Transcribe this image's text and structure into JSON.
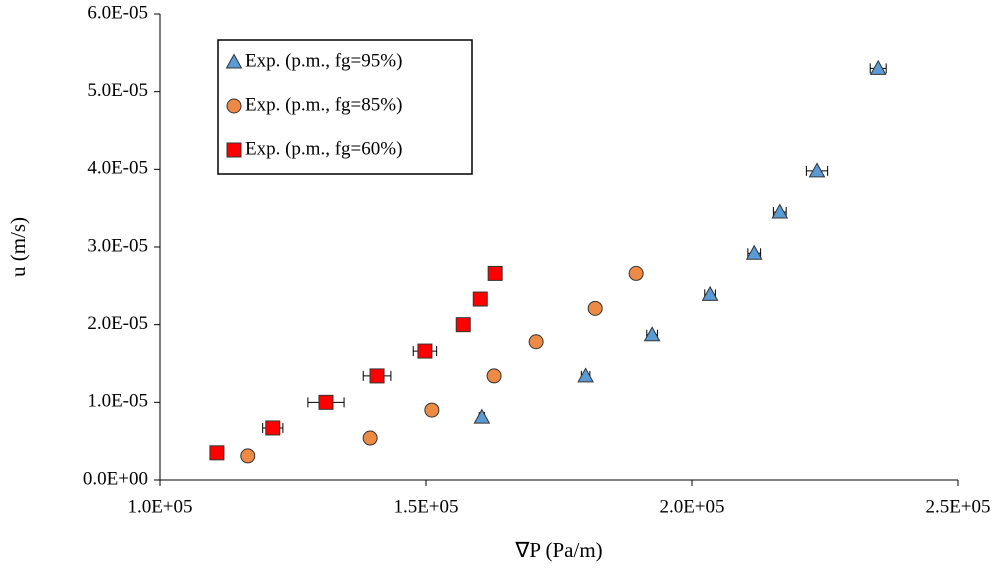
{
  "chart_data": {
    "type": "scatter",
    "x_label": "∇P (Pa/m)",
    "y_label": "u (m/s)",
    "xlim": [
      100000,
      250000
    ],
    "xticks": [
      {
        "value": 100000,
        "label": "1.0E+05"
      },
      {
        "value": 150000,
        "label": "1.5E+05"
      },
      {
        "value": 200000,
        "label": "2.0E+05"
      },
      {
        "value": 250000,
        "label": "2.5E+05"
      }
    ],
    "ylim": [
      0,
      6e-05
    ],
    "yticks": [
      {
        "value": 0,
        "label": "0.0E+00"
      },
      {
        "value": 1e-05,
        "label": "1.0E-05"
      },
      {
        "value": 2e-05,
        "label": "2.0E-05"
      },
      {
        "value": 3e-05,
        "label": "3.0E-05"
      },
      {
        "value": 4e-05,
        "label": "4.0E-05"
      },
      {
        "value": 5e-05,
        "label": "5.0E-05"
      },
      {
        "value": 6e-05,
        "label": "6.0E-05"
      }
    ],
    "grid": false,
    "legend": "upper-left",
    "series": [
      {
        "name": "Exp. (p.m., fg=95%)",
        "marker": "triangle",
        "color": "#5b9bd5",
        "x": [
          160500,
          180000,
          192500,
          203400,
          211700,
          216500,
          223500,
          235000
        ],
        "values": [
          8.1e-06,
          1.34e-05,
          1.87e-05,
          2.39e-05,
          2.92e-05,
          3.45e-05,
          3.98e-05,
          5.3e-05
        ],
        "xerr": [
          500,
          800,
          1000,
          1000,
          1200,
          1200,
          2000,
          1500
        ]
      },
      {
        "name": "Exp. (p.m., fg=85%)",
        "marker": "circle",
        "color": "#ed8a45",
        "x": [
          116500,
          139500,
          151100,
          162800,
          170700,
          181800,
          189500
        ],
        "values": [
          3.1e-06,
          5.4e-06,
          9e-06,
          1.34e-05,
          1.78e-05,
          2.21e-05,
          2.66e-05
        ],
        "xerr": [
          300,
          400,
          500,
          500,
          500,
          500,
          500
        ]
      },
      {
        "name": "Exp. (p.m., fg=60%)",
        "marker": "square",
        "color": "#ff0000",
        "x": [
          110700,
          121200,
          131200,
          140800,
          149800,
          157000,
          160200,
          163000
        ],
        "values": [
          3.5e-06,
          6.7e-06,
          1e-05,
          1.34e-05,
          1.66e-05,
          2e-05,
          2.33e-05,
          2.66e-05
        ],
        "xerr": [
          500,
          1900,
          3400,
          2600,
          2200,
          800,
          800,
          800
        ]
      }
    ]
  }
}
